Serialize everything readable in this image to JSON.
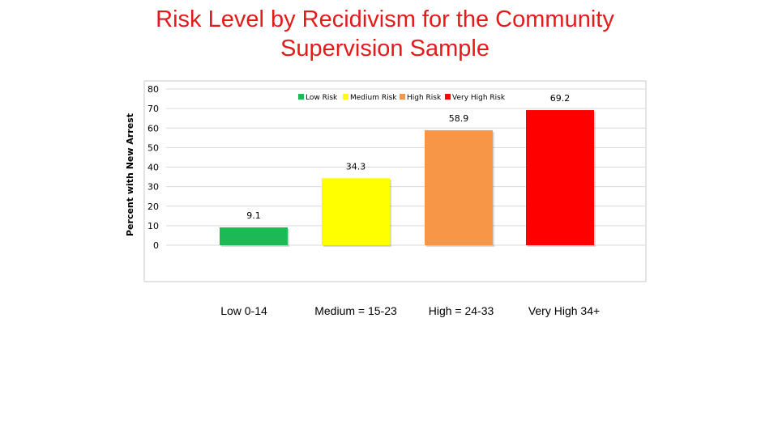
{
  "title": "Risk Level by Recidivism for the Community Supervision Sample",
  "chart_data": {
    "type": "bar",
    "categories": [
      "Low Risk",
      "Medium Risk",
      "High Risk",
      "Very High Risk"
    ],
    "values": [
      9.1,
      34.3,
      58.9,
      69.2
    ],
    "value_labels": [
      "9.1",
      "34.3",
      "58.9",
      "69.2"
    ],
    "ylabel": "Percent with New Arrest",
    "xlabel": "",
    "ylim": [
      0,
      80
    ],
    "yticks": [
      "0",
      "10",
      "20",
      "30",
      "40",
      "50",
      "60",
      "70",
      "80"
    ],
    "grid": true,
    "legend_position": "top",
    "colors": [
      "#1db954",
      "#ffff00",
      "#f79646",
      "#ff0000"
    ],
    "category_axis_labels": [
      "Low 0-14",
      "Medium = 15-23",
      "High = 24-33",
      "Very High 34+"
    ]
  }
}
